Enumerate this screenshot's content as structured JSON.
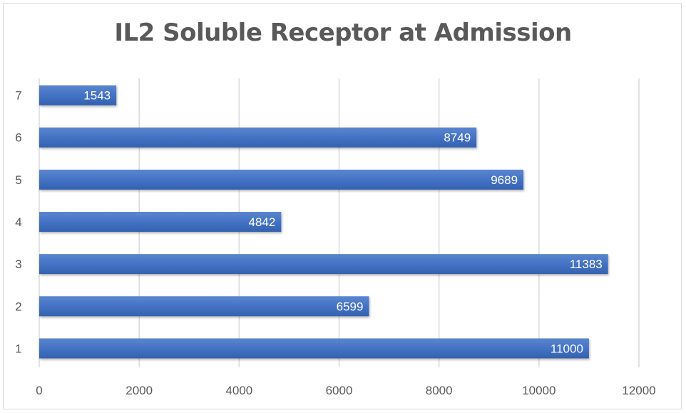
{
  "chart_data": {
    "type": "bar",
    "orientation": "horizontal",
    "title": "IL2 Soluble Receptor at Admission",
    "xlabel": "",
    "ylabel": "",
    "categories": [
      "1",
      "2",
      "3",
      "4",
      "5",
      "6",
      "7"
    ],
    "values": [
      11000,
      6599,
      11383,
      4842,
      9689,
      8749,
      1543
    ],
    "xlim": [
      0,
      12000
    ],
    "xticks": [
      "0",
      "2000",
      "4000",
      "6000",
      "8000",
      "10000",
      "12000"
    ],
    "grid": true,
    "legend": "none",
    "bar_color": "#4472c4",
    "data_labels": [
      "11000",
      "6599",
      "11383",
      "4842",
      "9689",
      "8749",
      "1543"
    ]
  }
}
